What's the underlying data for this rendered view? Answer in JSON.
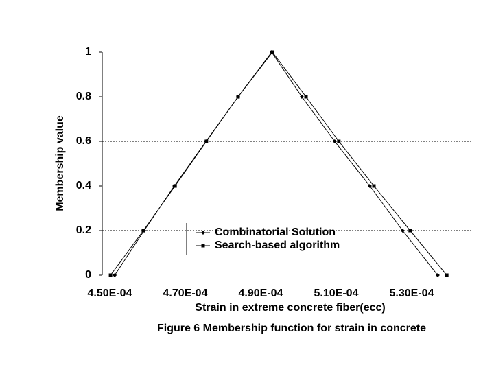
{
  "chart_data": {
    "type": "line",
    "x_label": "Strain in extreme concrete fiber(ecc)",
    "y_label": "Membership value",
    "caption": "Figure 6 Membership function for strain in concrete",
    "xlim": [
      0.000448,
      0.000546
    ],
    "ylim": [
      0,
      1
    ],
    "xticks": [
      {
        "value": 0.00045,
        "label": "4.50E-04"
      },
      {
        "value": 0.00047,
        "label": "4.70E-04"
      },
      {
        "value": 0.00049,
        "label": "4.90E-04"
      },
      {
        "value": 0.00051,
        "label": "5.10E-04"
      },
      {
        "value": 0.00053,
        "label": "5.30E-04"
      }
    ],
    "yticks": [
      0,
      0.2,
      0.4,
      0.6,
      0.8,
      1
    ],
    "grid_lines": [
      0.2,
      0.6
    ],
    "series": [
      {
        "name": "Combinatorial Solution",
        "color": "#000000",
        "marker": "diamond",
        "x": [
          0.0004513,
          0.0004591,
          0.0004671,
          0.0004755,
          0.000484,
          0.0004929,
          0.0005009,
          0.0005096,
          0.0005189,
          0.0005276,
          0.0005369
        ],
        "values": [
          0,
          0.2,
          0.4,
          0.6,
          0.8,
          1,
          0.8,
          0.6,
          0.4,
          0.2,
          0
        ]
      },
      {
        "name": "Search-based algorithm",
        "color": "#000000",
        "marker": "square",
        "x": [
          0.0004502,
          0.0004589,
          0.0004673,
          0.0004756,
          0.000484,
          0.0004931,
          0.000502,
          0.0005107,
          0.00052,
          0.0005296,
          0.0005393
        ],
        "values": [
          0,
          0.2,
          0.4,
          0.6,
          0.8,
          1,
          0.8,
          0.6,
          0.4,
          0.2,
          0
        ]
      }
    ]
  }
}
